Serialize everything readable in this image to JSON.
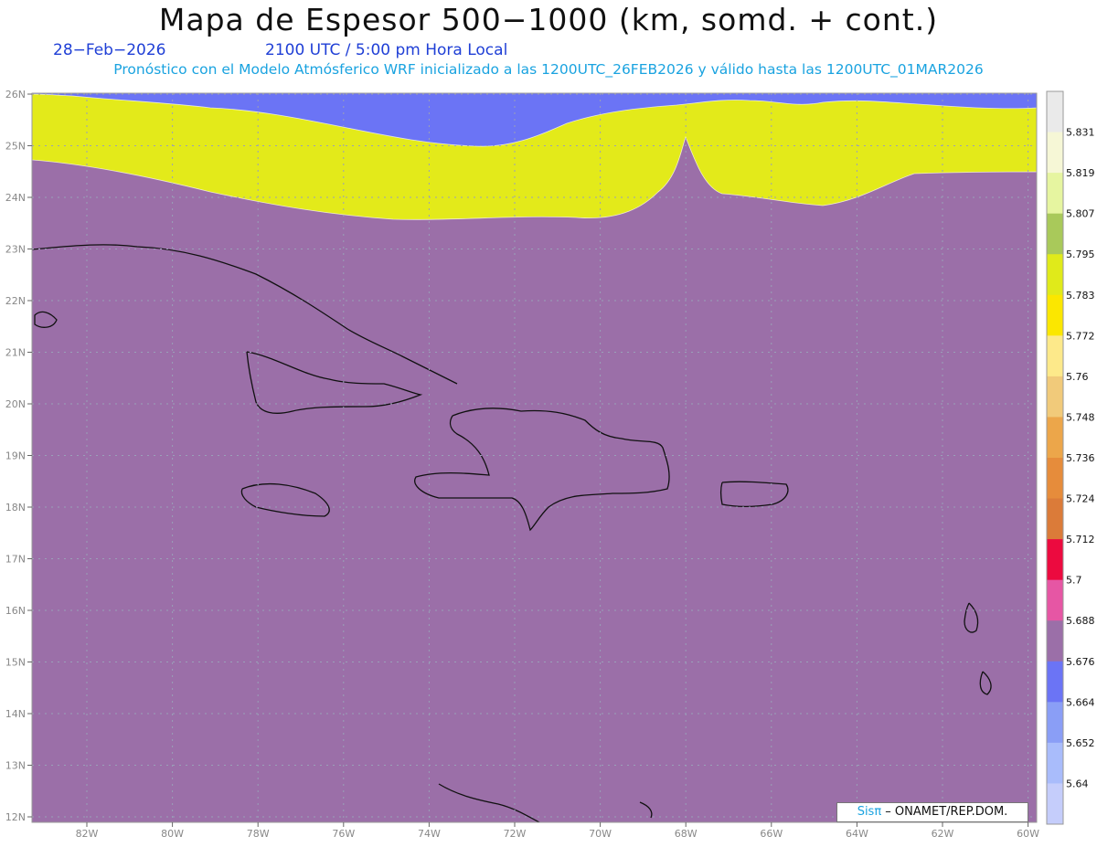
{
  "header": {
    "title": "Mapa de Espesor 500−1000 (km, somd. + cont.)",
    "date": "28−Feb−2026",
    "time": "2100 UTC / 5:00 pm Hora Local",
    "subtitle": "Pronóstico con el Modelo Atmósferico WRF inicializado a las 1200UTC_26FEB2026 y válido hasta las  1200UTC_01MAR2026"
  },
  "map": {
    "lat_ticks": [
      "26N",
      "25N",
      "24N",
      "23N",
      "22N",
      "21N",
      "20N",
      "19N",
      "18N",
      "17N",
      "16N",
      "15N",
      "14N",
      "13N",
      "12N"
    ],
    "lon_ticks": [
      "82W",
      "80W",
      "78W",
      "76W",
      "74W",
      "72W",
      "70W",
      "68W",
      "66W",
      "64W",
      "62W",
      "60W"
    ],
    "bands": [
      {
        "level": "<5.664",
        "color": "#6b74f5"
      },
      {
        "level": "5.676",
        "color": "#9b6fa8"
      },
      {
        "level": "5.688",
        "color": "#e656a4"
      },
      {
        "level": "5.700",
        "color": "#ec0a3f"
      },
      {
        "level": "5.712",
        "color": "#db7b39"
      },
      {
        "level": "5.724",
        "color": "#e68c3b"
      },
      {
        "level": "5.736",
        "color": "#eca64a"
      },
      {
        "level": "5.748",
        "color": "#f1ca7a"
      },
      {
        "level": "5.760",
        "color": "#fde98a"
      },
      {
        "level": "5.772",
        "color": "#fbe700"
      },
      {
        "level": "5.783",
        "color": "#e3ea1a"
      }
    ]
  },
  "colorbar": {
    "labels": [
      "5.831",
      "5.819",
      "5.807",
      "5.795",
      "5.783",
      "5.772",
      "5.76",
      "5.748",
      "5.736",
      "5.724",
      "5.712",
      "5.7",
      "5.688",
      "5.676",
      "5.664",
      "5.652",
      "5.64"
    ],
    "colors": [
      "#eaeaea",
      "#f6f7d6",
      "#e6f5a0",
      "#a9c95a",
      "#e0ea1a",
      "#fbe700",
      "#fde98a",
      "#f1ca7a",
      "#eca64a",
      "#e68c3b",
      "#db7b39",
      "#ec0a3f",
      "#e656a4",
      "#9b6fa8",
      "#6b74f5",
      "#8a9ef6",
      "#a9bcfb",
      "#c5cdfb"
    ]
  },
  "credit": {
    "brand": "Sisπ",
    "text": " – ONAMET/REP.DOM."
  }
}
